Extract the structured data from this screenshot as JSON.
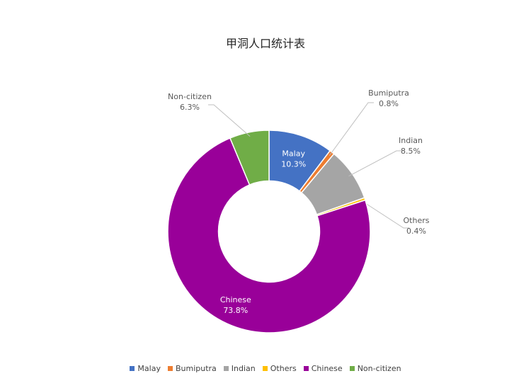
{
  "chart_data": {
    "type": "pie",
    "title": "甲洞人口统计表",
    "hole_ratio": 0.5,
    "slices": [
      {
        "label": "Malay",
        "value": 10.3,
        "display": "10.3%",
        "color": "#4472c4"
      },
      {
        "label": "Bumiputra",
        "value": 0.8,
        "display": "0.8%",
        "color": "#ed7d31"
      },
      {
        "label": "Indian",
        "value": 8.5,
        "display": "8.5%",
        "color": "#a5a5a5"
      },
      {
        "label": "Others",
        "value": 0.4,
        "display": "0.4%",
        "color": "#ffc000"
      },
      {
        "label": "Chinese",
        "value": 73.8,
        "display": "73.8%",
        "color": "#990099"
      },
      {
        "label": "Non-citizen",
        "value": 6.3,
        "display": "6.3%",
        "color": "#70ad47"
      }
    ],
    "legend_position": "bottom"
  }
}
